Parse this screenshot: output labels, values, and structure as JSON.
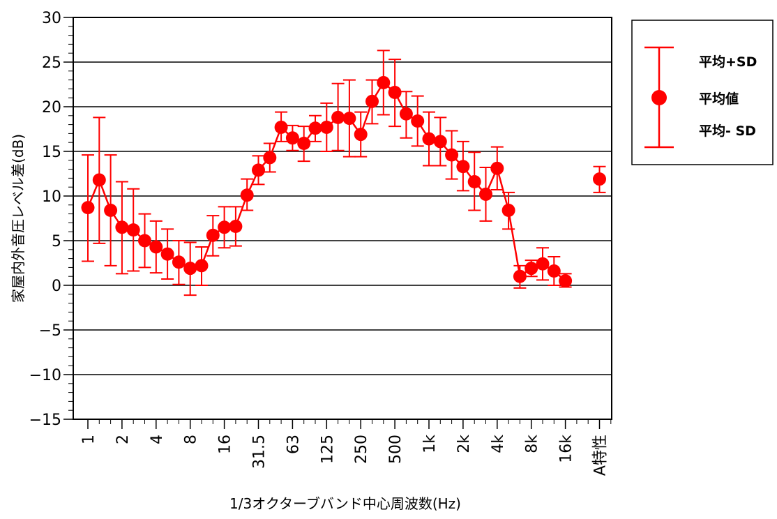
{
  "chart_data": {
    "type": "line",
    "xlabel": "1/3オクターブバンド中心周波数(Hz)",
    "ylabel": "家屋内外音圧レベル差(dB)",
    "ylim": [
      -15,
      30
    ],
    "yticks": [
      "30",
      "25",
      "20",
      "15",
      "10",
      "5",
      "0",
      "−5",
      "−10",
      "−15"
    ],
    "ytick_values": [
      30,
      25,
      20,
      15,
      10,
      5,
      0,
      -5,
      -10,
      -15
    ],
    "grid": true,
    "color": "#ff0000",
    "x_tick_labels": [
      {
        "index": 0,
        "label": "1"
      },
      {
        "index": 3,
        "label": "2"
      },
      {
        "index": 6,
        "label": "4"
      },
      {
        "index": 9,
        "label": "8"
      },
      {
        "index": 12,
        "label": "16"
      },
      {
        "index": 15,
        "label": "31.5"
      },
      {
        "index": 18,
        "label": "63"
      },
      {
        "index": 21,
        "label": "125"
      },
      {
        "index": 24,
        "label": "250"
      },
      {
        "index": 27,
        "label": "500"
      },
      {
        "index": 30,
        "label": "1k"
      },
      {
        "index": 33,
        "label": "2k"
      },
      {
        "index": 36,
        "label": "4k"
      },
      {
        "index": 39,
        "label": "8k"
      },
      {
        "index": 42,
        "label": "16k"
      },
      {
        "index": 45,
        "label": "A特性"
      }
    ],
    "series": [
      {
        "name": "平均値",
        "mean": [
          8.7,
          11.8,
          8.4,
          6.5,
          6.2,
          5.0,
          4.3,
          3.5,
          2.6,
          1.9,
          2.2,
          5.6,
          6.5,
          6.6,
          10.1,
          12.9,
          14.3,
          17.7,
          16.5,
          15.9,
          17.6,
          17.7,
          18.8,
          18.7,
          16.9,
          20.6,
          22.7,
          21.6,
          19.2,
          18.4,
          16.4,
          16.1,
          14.6,
          13.3,
          11.6,
          10.2,
          13.1,
          8.4,
          1.0,
          1.9,
          2.4,
          1.6,
          0.5
        ],
        "sd_upper": [
          14.6,
          18.8,
          14.6,
          11.6,
          10.8,
          8.0,
          7.2,
          6.3,
          5.0,
          4.8,
          4.3,
          7.8,
          8.8,
          8.8,
          11.9,
          14.5,
          15.9,
          19.4,
          17.9,
          17.8,
          19.0,
          20.4,
          22.6,
          23.0,
          19.4,
          23.0,
          26.3,
          25.3,
          21.7,
          21.2,
          19.4,
          18.8,
          17.3,
          16.1,
          14.9,
          13.2,
          15.5,
          10.4,
          2.2,
          2.8,
          4.2,
          3.2,
          1.3
        ],
        "sd_lower": [
          2.7,
          4.7,
          2.2,
          1.3,
          1.6,
          2.0,
          1.4,
          0.7,
          0.1,
          -1.1,
          0.0,
          3.3,
          4.2,
          4.4,
          8.4,
          11.3,
          12.7,
          16.1,
          15.1,
          13.9,
          16.1,
          15.0,
          15.1,
          14.4,
          14.4,
          18.1,
          19.1,
          17.8,
          16.5,
          15.6,
          13.4,
          13.4,
          11.9,
          10.6,
          8.4,
          7.2,
          10.7,
          6.3,
          -0.3,
          1.0,
          0.6,
          0.0,
          -0.2
        ]
      },
      {
        "name": "A特性",
        "index": 45,
        "mean": 11.9,
        "sd_upper": 13.3,
        "sd_lower": 10.4
      }
    ],
    "legend": {
      "position": "right",
      "items": [
        "平均+SD",
        "平均値",
        "平均- SD"
      ]
    }
  }
}
